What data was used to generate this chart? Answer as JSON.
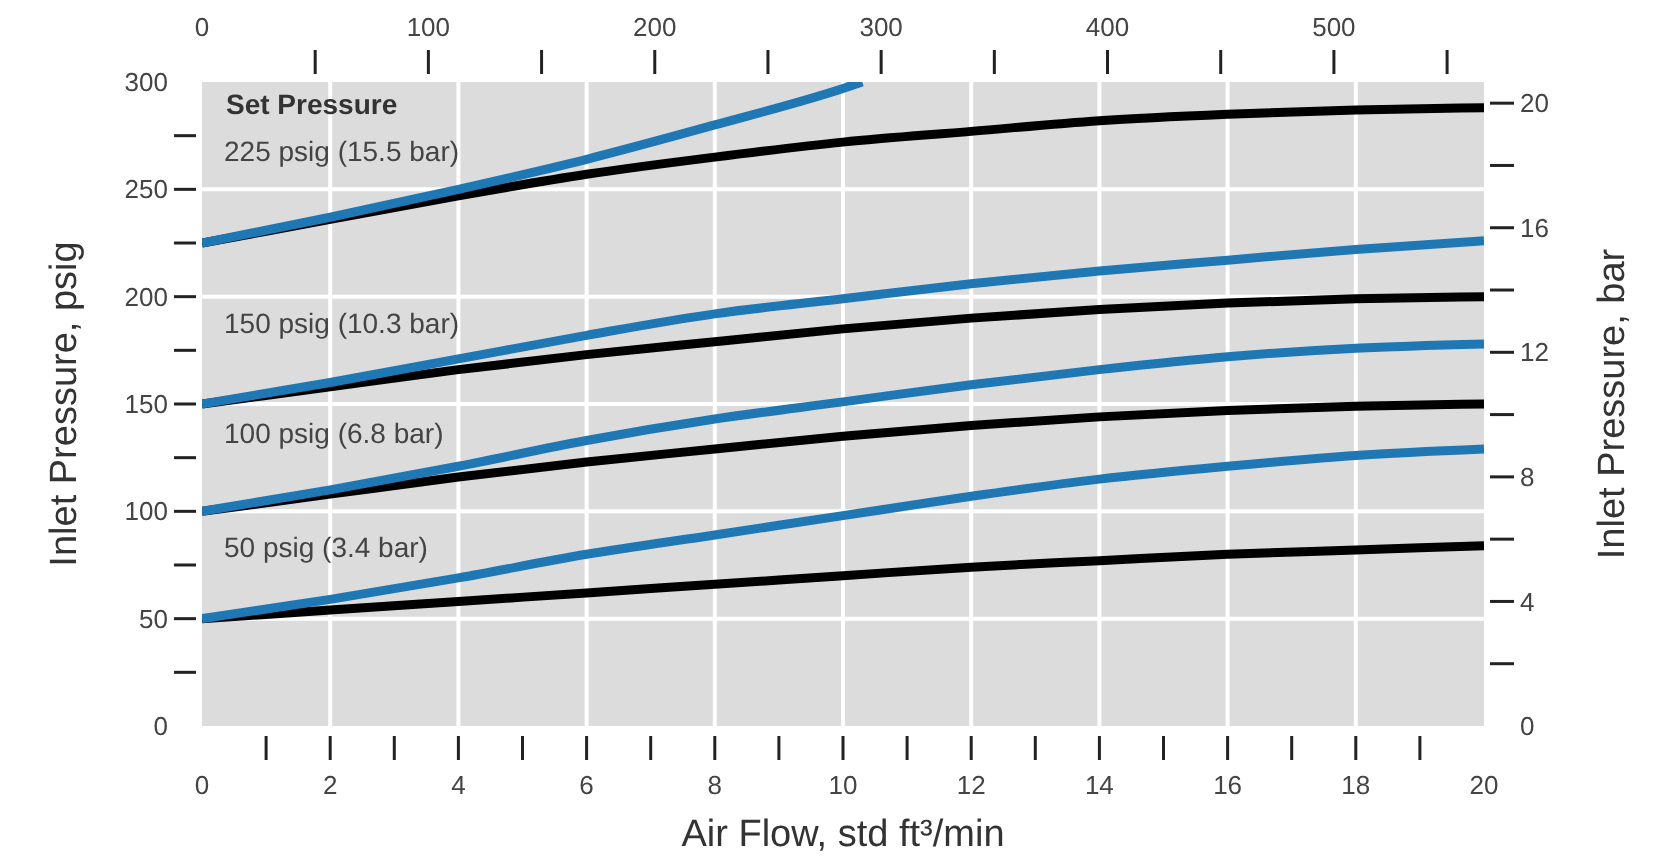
{
  "chart_data": {
    "type": "line",
    "xlabel": "Air Flow, std ft³/min",
    "ylabel": "Inlet Pressure, psig",
    "y2label": "Inlet Pressure, bar",
    "x": [
      0,
      2,
      4,
      6,
      8,
      10,
      12,
      14,
      16,
      18,
      20
    ],
    "xlim": [
      0,
      20
    ],
    "xticks": [
      0,
      {
        "value": 1,
        "label": null
      },
      2,
      {
        "value": 3,
        "label": null
      },
      4,
      {
        "value": 5,
        "label": null
      },
      6,
      {
        "value": 7,
        "label": null
      },
      8,
      {
        "value": 9,
        "label": null
      },
      10,
      {
        "value": 11,
        "label": null
      },
      12,
      {
        "value": 13,
        "label": null
      },
      14,
      {
        "value": 15,
        "label": null
      },
      16,
      {
        "value": 17,
        "label": null
      },
      18,
      {
        "value": 19,
        "label": null
      },
      20
    ],
    "ylim": [
      0,
      300
    ],
    "yticks": [
      0,
      {
        "value": 25,
        "label": null
      },
      50,
      {
        "value": 75,
        "label": null
      },
      100,
      {
        "value": 125,
        "label": null
      },
      150,
      {
        "value": 175,
        "label": null
      },
      200,
      {
        "value": 225,
        "label": null
      },
      250,
      {
        "value": 275,
        "label": null
      },
      300
    ],
    "y2lim": [
      0,
      20.68
    ],
    "y2ticks": [
      0,
      {
        "value": 2,
        "label": null
      },
      4,
      {
        "value": 6,
        "label": null
      },
      8,
      {
        "value": 10,
        "label": null
      },
      12,
      {
        "value": 14,
        "label": null
      },
      16,
      {
        "value": 18,
        "label": null
      },
      20
    ],
    "x2lim": [
      0,
      566.3
    ],
    "x2ticks": [
      0,
      {
        "value": 50,
        "label": null
      },
      100,
      {
        "value": 150,
        "label": null
      },
      200,
      {
        "value": 250,
        "label": null
      },
      300,
      {
        "value": 350,
        "label": null
      },
      400,
      {
        "value": 450,
        "label": null
      },
      500,
      {
        "value": 550,
        "label": null
      }
    ],
    "grid": true,
    "series": [
      {
        "color": "#000000",
        "values": [
          225,
          236,
          247,
          257,
          265,
          272,
          277,
          282,
          285,
          287,
          288
        ]
      },
      {
        "name": "225 psig (15.5 bar)",
        "color": "#1f78b4",
        "x": [
          0,
          2,
          4,
          6,
          8,
          10,
          10.3
        ],
        "values": [
          225,
          237,
          250,
          264,
          280,
          297,
          300
        ]
      },
      {
        "color": "#000000",
        "values": [
          150,
          158,
          166,
          173,
          179,
          185,
          190,
          194,
          197,
          199,
          200
        ]
      },
      {
        "name": "150 psig (10.3 bar)",
        "color": "#1f78b4",
        "values": [
          150,
          160,
          171,
          182,
          192,
          199,
          206,
          212,
          217,
          222,
          226
        ]
      },
      {
        "color": "#000000",
        "values": [
          100,
          108,
          116,
          123,
          129,
          135,
          140,
          144,
          147,
          149,
          150
        ]
      },
      {
        "name": "100 psig (6.8 bar)",
        "color": "#1f78b4",
        "values": [
          100,
          110,
          121,
          133,
          143,
          151,
          159,
          166,
          172,
          176,
          178
        ]
      },
      {
        "color": "#000000",
        "values": [
          50,
          54,
          58,
          62,
          66,
          70,
          74,
          77,
          80,
          82,
          84
        ]
      },
      {
        "name": "50 psig (3.4 bar)",
        "color": "#1f78b4",
        "values": [
          50,
          59,
          69,
          80,
          89,
          98,
          107,
          115,
          121,
          126,
          129
        ]
      }
    ],
    "annotations": [
      "Set Pressure"
    ]
  }
}
